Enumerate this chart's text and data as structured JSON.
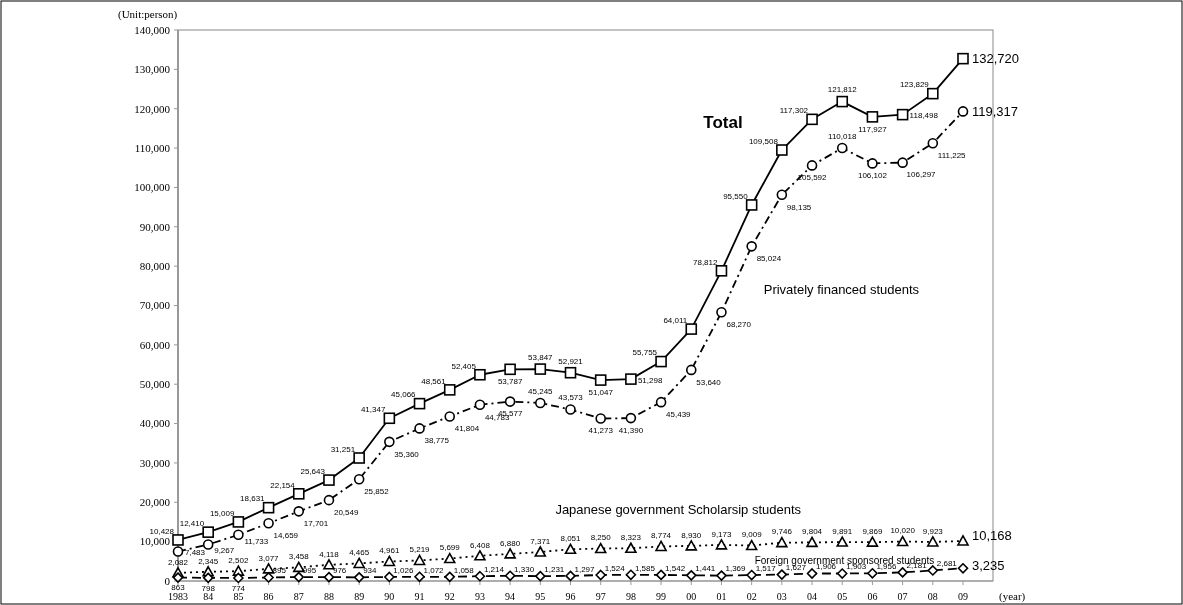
{
  "chart_data": {
    "type": "line",
    "xlabel": "(year)",
    "ylabel": "(Unit:person)",
    "categories": [
      "1983",
      "84",
      "85",
      "86",
      "87",
      "88",
      "89",
      "90",
      "91",
      "92",
      "93",
      "94",
      "95",
      "96",
      "97",
      "98",
      "99",
      "00",
      "01",
      "02",
      "03",
      "04",
      "05",
      "06",
      "07",
      "08",
      "09"
    ],
    "series": [
      {
        "name": "Total",
        "color": "#000000",
        "marker": "square",
        "line_style": "solid",
        "value_labels": [
          "10,428",
          "12,410",
          "15,009",
          "18,631",
          "22,154",
          "25,643",
          "31,251",
          "41,347",
          "45,066",
          "48,561",
          "52,405",
          "53,787",
          "53,847",
          "52,921",
          "51,047",
          "51,298",
          "55,755",
          "64,011",
          "78,812",
          "95,550",
          "109,508",
          "117,302",
          "121,812",
          "117,927",
          "118,498",
          "123,829",
          "132,720"
        ],
        "values": [
          10428,
          12410,
          15009,
          18631,
          22154,
          25643,
          31251,
          41347,
          45066,
          48561,
          52405,
          53787,
          53847,
          52921,
          51047,
          51298,
          55755,
          64011,
          78812,
          95550,
          109508,
          117302,
          121812,
          117927,
          118498,
          123829,
          132720
        ]
      },
      {
        "name": "Privately financed students",
        "color": "#000000",
        "marker": "circle",
        "line_style": "dashdot",
        "value_labels": [
          "7,483",
          "9,267",
          "11,733",
          "14,659",
          "17,701",
          "20,549",
          "25,852",
          "35,360",
          "38,775",
          "41,804",
          "44,783",
          "45,577",
          "45,245",
          "43,573",
          "41,273",
          "41,390",
          "45,439",
          "53,640",
          "68,270",
          "85,024",
          "98,135",
          "105,592",
          "110,018",
          "106,102",
          "106,297",
          "111,225",
          "119,317"
        ],
        "values": [
          7483,
          9267,
          11733,
          14659,
          17701,
          20549,
          25852,
          35360,
          38775,
          41804,
          44783,
          45577,
          45245,
          43573,
          41273,
          41390,
          45439,
          53640,
          68270,
          85024,
          98135,
          105592,
          110018,
          106102,
          106297,
          111225,
          119317
        ]
      },
      {
        "name": "Japanese government Scholarsip students",
        "color": "#000000",
        "marker": "triangle",
        "line_style": "dotted",
        "value_labels": [
          "2,082",
          "2,345",
          "2,502",
          "3,077",
          "3,458",
          "4,118",
          "4,465",
          "4,961",
          "5,219",
          "5,699",
          "6,408",
          "6,880",
          "7,371",
          "8,051",
          "8,250",
          "8,323",
          "8,774",
          "8,930",
          "9,173",
          "9,009",
          "9,746",
          "9,804",
          "9,891",
          "9,869",
          "10,020",
          "9,923",
          "10,168"
        ],
        "values": [
          2082,
          2345,
          2502,
          3077,
          3458,
          4118,
          4465,
          4961,
          5219,
          5699,
          6408,
          6880,
          7371,
          8051,
          8250,
          8323,
          8774,
          8930,
          9173,
          9009,
          9746,
          9804,
          9891,
          9869,
          10020,
          9923,
          10168
        ]
      },
      {
        "name": "Foreign government sponsored students",
        "color": "#000000",
        "marker": "diamond",
        "line_style": "dashed",
        "value_labels": [
          "863",
          "798",
          "774",
          "895",
          "995",
          "976",
          "934",
          "1,026",
          "1,072",
          "1,058",
          "1,214",
          "1,330",
          "1,231",
          "1,297",
          "1,524",
          "1,585",
          "1,542",
          "1,441",
          "1,369",
          "1,517",
          "1,627",
          "1,906",
          "1,903",
          "1,956",
          "2,181",
          "2,681",
          "3,235"
        ],
        "values": [
          863,
          798,
          774,
          895,
          995,
          976,
          934,
          1026,
          1072,
          1058,
          1214,
          1330,
          1231,
          1297,
          1524,
          1585,
          1542,
          1441,
          1369,
          1517,
          1627,
          1906,
          1903,
          1956,
          2181,
          2681,
          3235
        ]
      }
    ],
    "ylim": [
      0,
      140000
    ],
    "yticks": [
      0,
      {
        "value": 10000,
        "label": "10,000"
      },
      {
        "value": 20000,
        "label": "20,000"
      },
      {
        "value": 30000,
        "label": "30,000"
      },
      {
        "value": 40000,
        "label": "40,000"
      },
      {
        "value": 50000,
        "label": "50,000"
      },
      {
        "value": 60000,
        "label": "60,000"
      },
      {
        "value": 70000,
        "label": "70,000"
      },
      {
        "value": 80000,
        "label": "80,000"
      },
      {
        "value": 90000,
        "label": "90,000"
      },
      {
        "value": 100000,
        "label": "100,000"
      },
      {
        "value": 110000,
        "label": "110,000"
      },
      {
        "value": 120000,
        "label": "120,000"
      },
      {
        "value": 130000,
        "label": "130,000"
      },
      {
        "value": 140000,
        "label": "140,000"
      }
    ],
    "grid": false
  }
}
